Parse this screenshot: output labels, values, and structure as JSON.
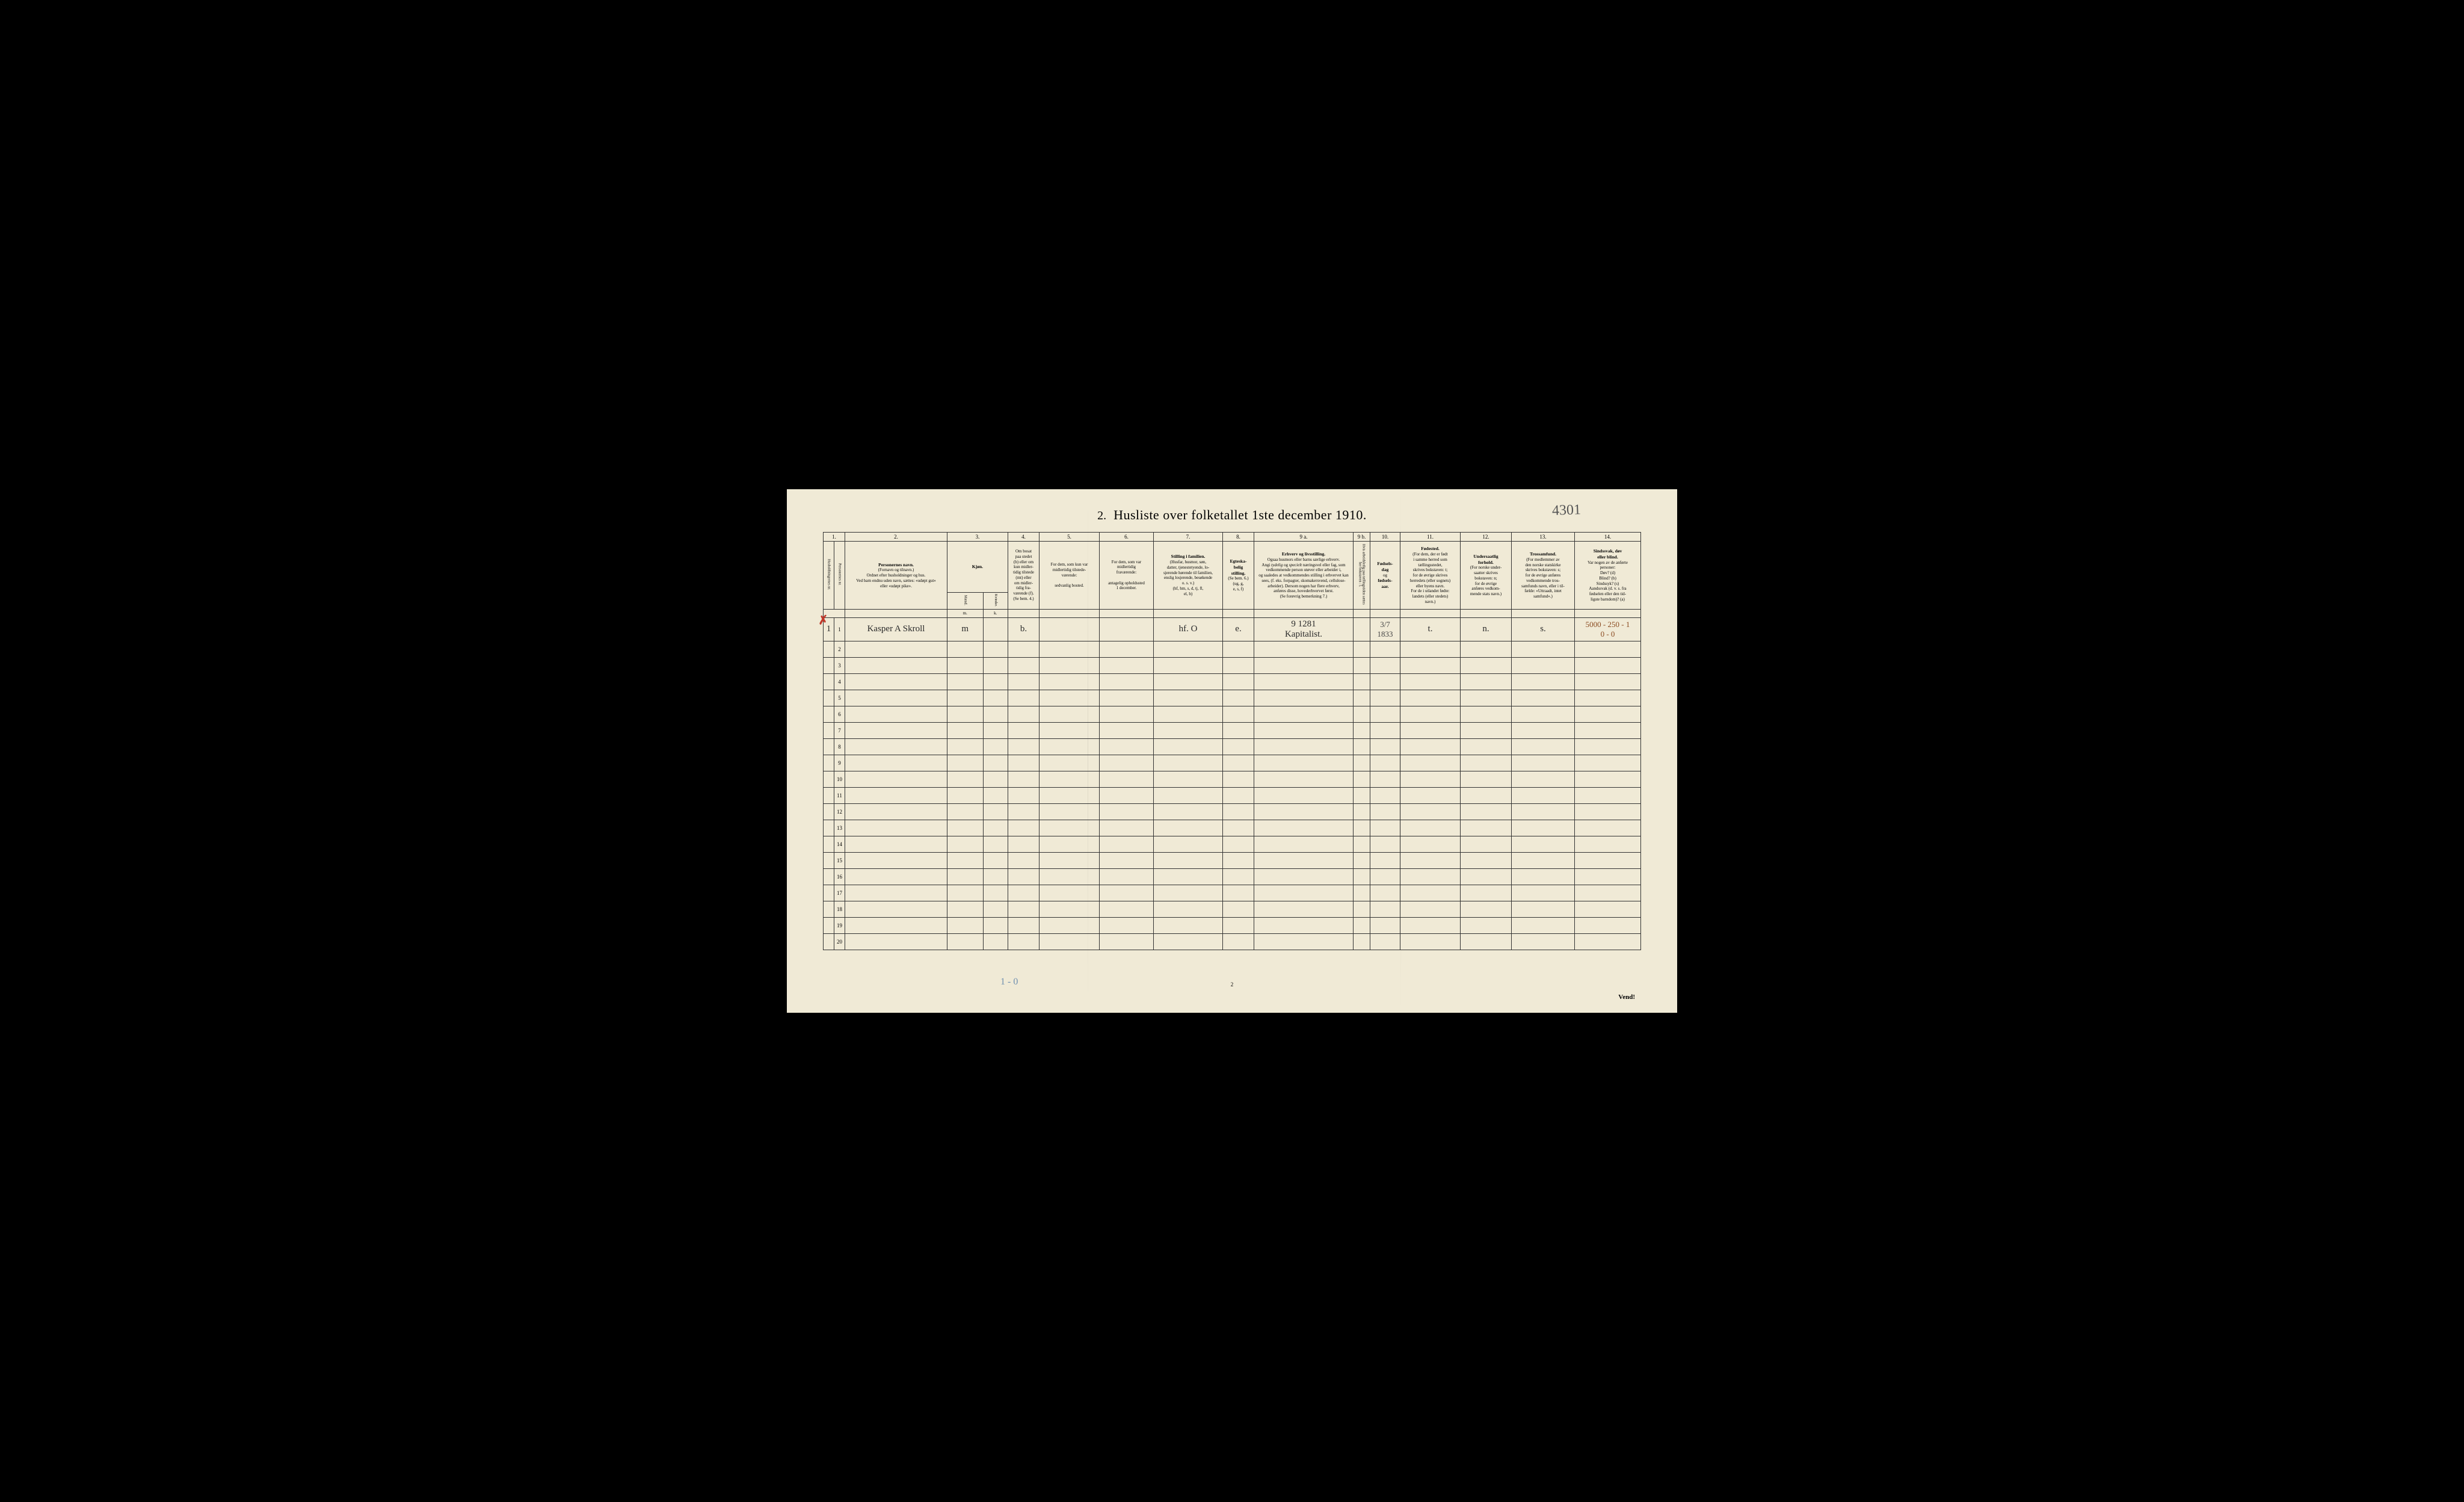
{
  "title_number": "2.",
  "title_text": "Husliste over folketallet 1ste december 1910.",
  "handwritten_topright": "4301",
  "red_mark": "✗",
  "header_numbers": [
    "1.",
    "2.",
    "3.",
    "4.",
    "5.",
    "6.",
    "7.",
    "8.",
    "9 a.",
    "9 b.",
    "10.",
    "11.",
    "12.",
    "13.",
    "14."
  ],
  "headers": {
    "col1a": "Husholdningernes nr.",
    "col1b": "Personernes nr.",
    "col2": "<strong>Personernes navn.</strong><br>(Fornavn og tilnavn.)<br>Ordnet efter husholdninger og hus.<br>Ved barn endnu uden navn, sættes: «udøpt gut»<br>eller «udøpt pike».",
    "col3": "<strong>Kjøn.</strong>",
    "col3sub": "Kvinder.",
    "col3a": "Mænd.",
    "col4": "Om bosat<br>paa stedet<br>(b) eller om<br>kun midler-<br>tidig tilstede<br>(mt) eller<br>om midler-<br>tidig fra-<br>værende (f).<br>(Se bem. 4.)",
    "col5": "For dem, som kun var<br>midlertidig tilstede-<br>værende:<br><br>sedvanlig bosted.",
    "col6": "For dem, som var<br>midlertidig<br>fraværende:<br><br>antagelig opholdssted<br>1 december.",
    "col7": "<strong>Stilling i familien.</strong><br>(Husfar, husmor, søn,<br>datter, tjenestetyende, lo-<br>sjerende hørende til familien,<br>enslig losjerende, besøkende<br>o. s. v.)<br>(hf, hm, s, d, tj, fl,<br>el, b)",
    "col8": "<strong>Egteska-<br>belig<br>stilling.</strong><br>(Se bem. 6.)<br>(ug, g,<br>e, s, f)",
    "col9": "<strong>Erhverv og livsstilling.</strong><br>Ogsaa husmors eller barns særlige erhverv.<br>Angi <em>tydelig</em> og <em>specielt</em> næringsvel eller fag, som<br>vedkommende person utøver eller arbeider i,<br>og saaledes at vedkommendes stilling i erhvervet kan<br>sees, (f. eks. forpagter, skomakersvend, cellulose-<br>arbeider). Dersom nogen har flere erhverv,<br>anføres disse, hovederhvervet først.<br>(Se forøvrig bemerkning 7.)",
    "col9b": "Hvis arbeidsledig paa tællingstiden sættes her bokstaven : l.",
    "col10": "<strong>Fødsels-<br>dag</strong><br>og<br><strong>fødsels-<br>aar.</strong>",
    "col11": "<strong>Fødested.</strong><br>(For dem, der er født<br>i samme herred som<br>tællingsstedet,<br>skrives bokstaven: t;<br>for de øvrige skrives<br>herredets (eller sognets)<br>eller byens navn.<br>For de i utlandet fødte:<br>landets (eller stedets)<br>navn.)",
    "col12": "<strong>Undersaatlig<br>forhold.</strong><br>(For norske under-<br>saatter skrives<br>bokstaven: n;<br>for de øvrige<br>anføres vedkom-<br>mende stats navn.)",
    "col13": "<strong>Trossamfund.</strong><br>(For medlemmer av<br>den norske statskirke<br>skrives bokstaven: s;<br>for de øvrige anføres<br>vedkommende tros-<br>samfunds navn, eller i til-<br>fælde: «Uttraadt, intet<br>samfund».)",
    "col14": "<strong>Sindssvak, døv<br>eller blind.</strong><br>Var nogen av de anførte<br>personer:<br>Døv? (d)<br>Blind? (b)<br>Sindssyk? (s)<br>Aandssvak (d. v. s. fra<br>fødselen eller den tid-<br>ligste barndom)? (a)"
  },
  "sub3": {
    "m": "m.",
    "k": "k."
  },
  "row1": {
    "hh": "1",
    "pn": "1",
    "name": "Kasper A Skroll",
    "sex": "m",
    "resident": "b.",
    "col7": "hf.   O",
    "col8": "e.",
    "col9": "9 1281<br>Kapitalist.",
    "col10": "3/7 1833",
    "col11": "t.",
    "col12": "n.",
    "col13": "s.",
    "col14": "5000 - 250 - 1<br>0 - 0"
  },
  "row_numbers": [
    "2",
    "3",
    "4",
    "5",
    "6",
    "7",
    "8",
    "9",
    "10",
    "11",
    "12",
    "13",
    "14",
    "15",
    "16",
    "17",
    "18",
    "19",
    "20"
  ],
  "bottom_note": "1 - 0",
  "page_number": "2",
  "vend_text": "Vend!"
}
